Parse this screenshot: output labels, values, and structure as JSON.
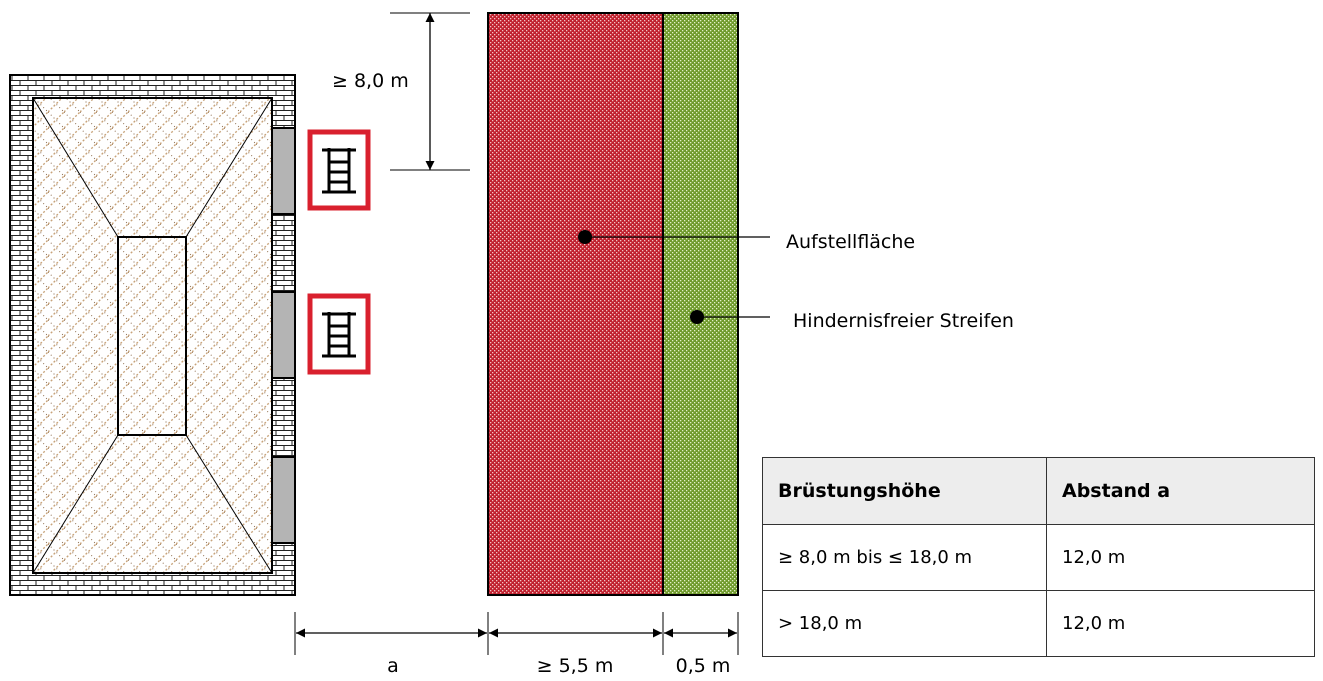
{
  "dimensions": {
    "min_distance_top": "≥ 8,0 m",
    "distance_a": "a",
    "width_area": "≥ 5,5 m",
    "width_strip": "0,5 m"
  },
  "legend": {
    "aufstellflaeche": "Aufstellfläche",
    "hindernisfrei": "Hindernisfreier Streifen"
  },
  "colors": {
    "aufstellflaeche": "#c0202e",
    "hindernisfrei_streifen": "#6f9a2c",
    "ladder_frame": "#d9202e",
    "roof_hatch": "#c8a37a"
  },
  "icons": [
    "ladder-icon",
    "ladder-icon"
  ],
  "table": {
    "headers": [
      "Brüstungshöhe",
      "Abstand a"
    ],
    "rows": [
      [
        "≥ 8,0 m bis ≤ 18,0 m",
        "12,0 m"
      ],
      [
        "> 18,0 m",
        "12,0 m"
      ]
    ]
  }
}
